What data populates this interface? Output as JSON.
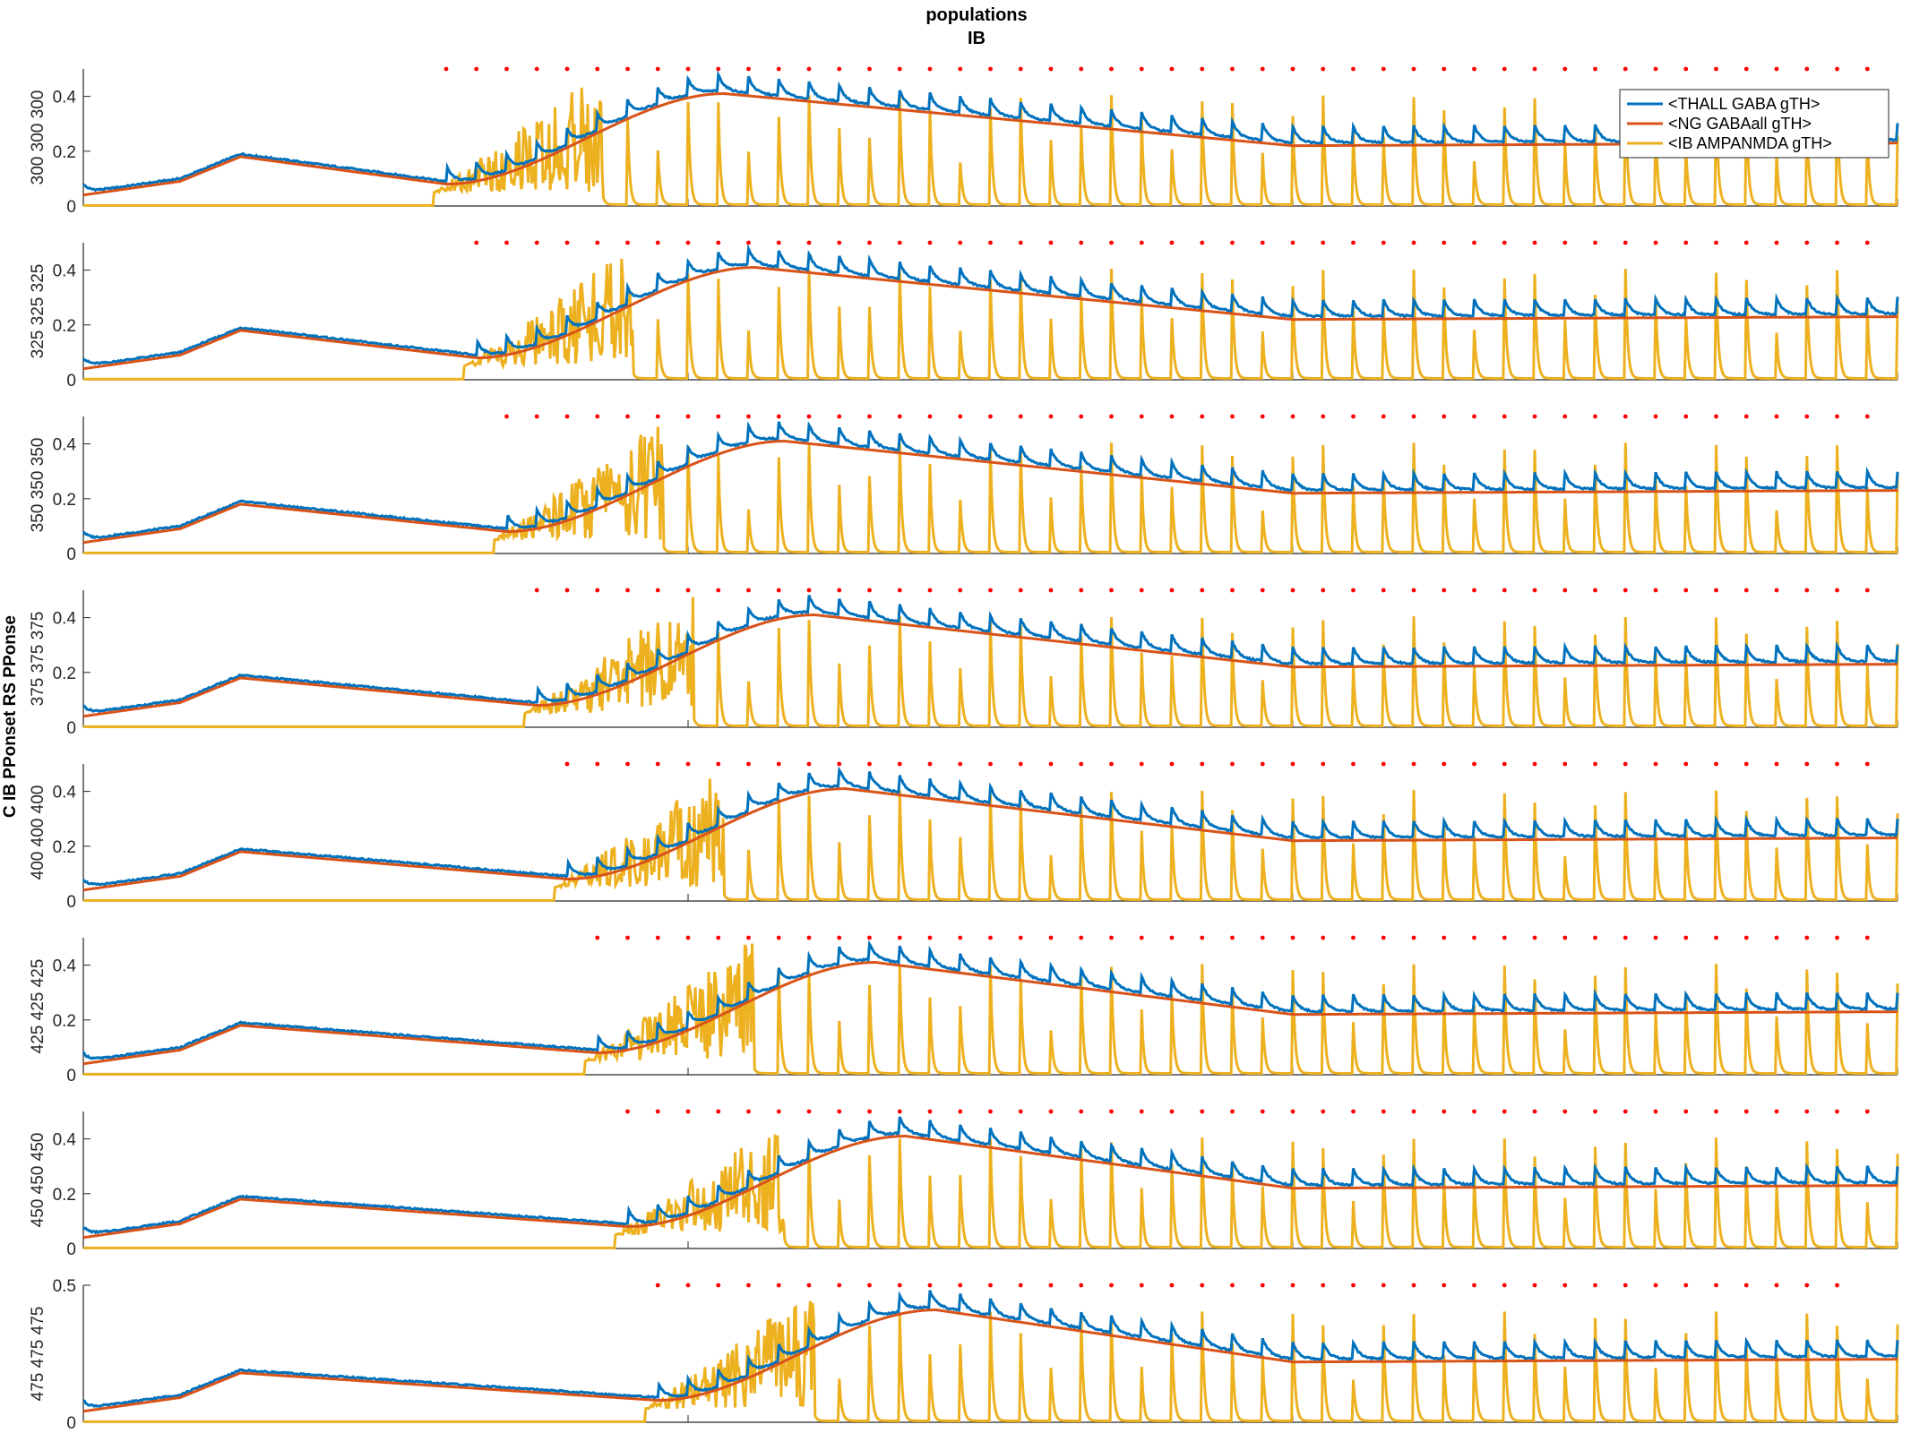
{
  "chart_data": {
    "type": "line",
    "title": "populations",
    "subtitle": "IB",
    "ylabel": "C IB PPonset RS PPonse",
    "xlim": [
      0,
      1500
    ],
    "x_ticks": [
      "0",
      "500",
      "1000",
      "1500"
    ],
    "legend": {
      "placement": "top-right",
      "entries": [
        "<THALL GABA gTH>",
        "<NG GABAall gTH>",
        "<IB AMPANMDA gTH>"
      ]
    },
    "colors": {
      "thall": "#0072BD",
      "ng": "#D95319",
      "ib": "#EDB120",
      "markers": "#FF0000",
      "axis": "#262626"
    },
    "panels": [
      {
        "row_label": "300 300 300",
        "ylim": [
          0,
          0.5
        ],
        "y_ticks": [
          "0",
          "0.2",
          "0.4"
        ],
        "onset": 300,
        "marker_start": 300,
        "marker_end": 1480
      },
      {
        "row_label": "325 325 325",
        "ylim": [
          0,
          0.5
        ],
        "y_ticks": [
          "0",
          "0.2",
          "0.4"
        ],
        "onset": 325,
        "marker_start": 325,
        "marker_end": 1480
      },
      {
        "row_label": "350 350 350",
        "ylim": [
          0,
          0.5
        ],
        "y_ticks": [
          "0",
          "0.2",
          "0.4"
        ],
        "onset": 350,
        "marker_start": 350,
        "marker_end": 1480
      },
      {
        "row_label": "375 375 375",
        "ylim": [
          0,
          0.5
        ],
        "y_ticks": [
          "0",
          "0.2",
          "0.4"
        ],
        "onset": 375,
        "marker_start": 375,
        "marker_end": 1480
      },
      {
        "row_label": "400 400 400",
        "ylim": [
          0,
          0.5
        ],
        "y_ticks": [
          "0",
          "0.2",
          "0.4"
        ],
        "onset": 400,
        "marker_start": 400,
        "marker_end": 1480
      },
      {
        "row_label": "425 425 425",
        "ylim": [
          0,
          0.5
        ],
        "y_ticks": [
          "0",
          "0.2",
          "0.4"
        ],
        "onset": 425,
        "marker_start": 425,
        "marker_end": 1480
      },
      {
        "row_label": "450 450 450",
        "ylim": [
          0,
          0.5
        ],
        "y_ticks": [
          "0",
          "0.2",
          "0.4"
        ],
        "onset": 450,
        "marker_start": 450,
        "marker_end": 1480
      },
      {
        "row_label": "475 475 475",
        "ylim": [
          0,
          0.5
        ],
        "y_ticks": [
          "0",
          "0.5"
        ],
        "onset": 475,
        "marker_start": 475,
        "marker_end": 1460
      }
    ],
    "series": [
      {
        "name": "<THALL GABA gTH>",
        "key": "thall",
        "description_values": {
          "x": [
            0,
            80,
            130,
            220,
            "onset",
            500,
            550,
            800,
            1000,
            1500
          ],
          "y": [
            0.05,
            0.1,
            0.18,
            0.16,
            0.09,
            0.37,
            0.42,
            0.3,
            0.24,
            0.24
          ]
        }
      },
      {
        "name": "<NG GABAall gTH>",
        "key": "ng",
        "description_values": {
          "x": [
            0,
            80,
            130,
            220,
            "onset",
            500,
            550,
            800,
            1000,
            1500
          ],
          "y": [
            0.04,
            0.09,
            0.18,
            0.16,
            0.08,
            0.36,
            0.41,
            0.3,
            0.21,
            0.23
          ]
        }
      },
      {
        "name": "<IB AMPANMDA gTH>",
        "key": "ib",
        "description_values": {
          "x": [
            0,
            "onset",
            1500
          ],
          "y": [
            0.0,
            0.5,
            0.02
          ],
          "spike_period": 25
        }
      }
    ]
  }
}
